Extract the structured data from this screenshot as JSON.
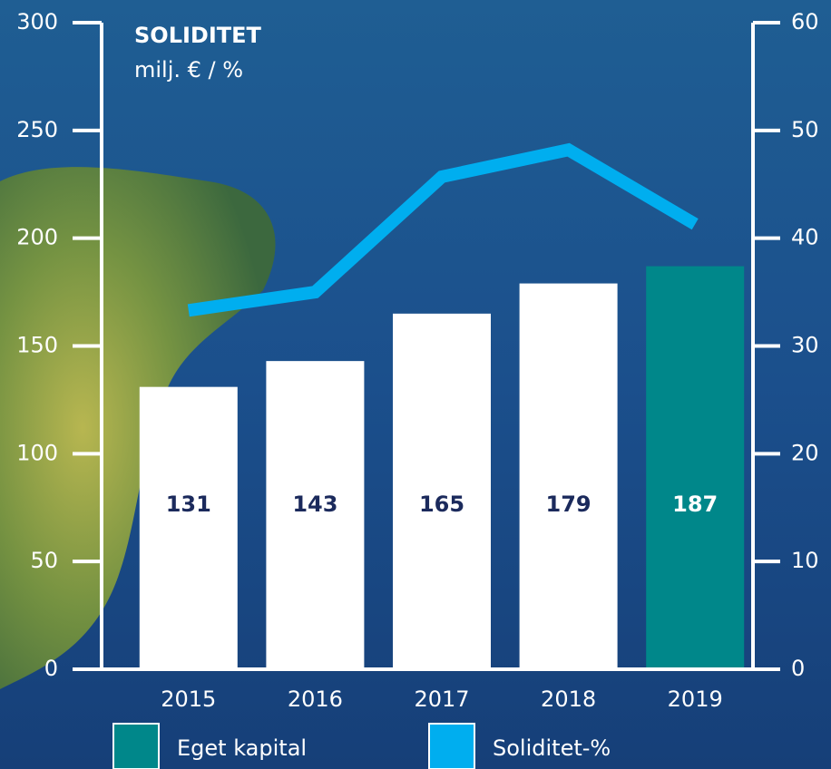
{
  "chart_data": {
    "type": "combo",
    "title": "SOLIDITET",
    "subtitle": "milj. € / %",
    "categories": [
      "2015",
      "2016",
      "2017",
      "2018",
      "2019"
    ],
    "series": [
      {
        "name": "Eget kapital",
        "type": "bar",
        "color": "#00878a",
        "bar_colors": [
          "#ffffff",
          "#ffffff",
          "#ffffff",
          "#ffffff",
          "#00878a"
        ],
        "values": [
          131,
          143,
          165,
          179,
          187
        ]
      },
      {
        "name": "Soliditet-%",
        "type": "line",
        "axis": "y2",
        "color": "#00aeef",
        "values": [
          33.3,
          35.0,
          45.7,
          48.2,
          41.3
        ]
      }
    ],
    "ylim": [
      0,
      300
    ],
    "yticks": [
      0,
      50,
      100,
      150,
      200,
      250,
      300
    ],
    "y2lim": [
      0,
      60
    ],
    "y2ticks": [
      0,
      10,
      20,
      30,
      40,
      50,
      60
    ],
    "legend": "bottom"
  }
}
